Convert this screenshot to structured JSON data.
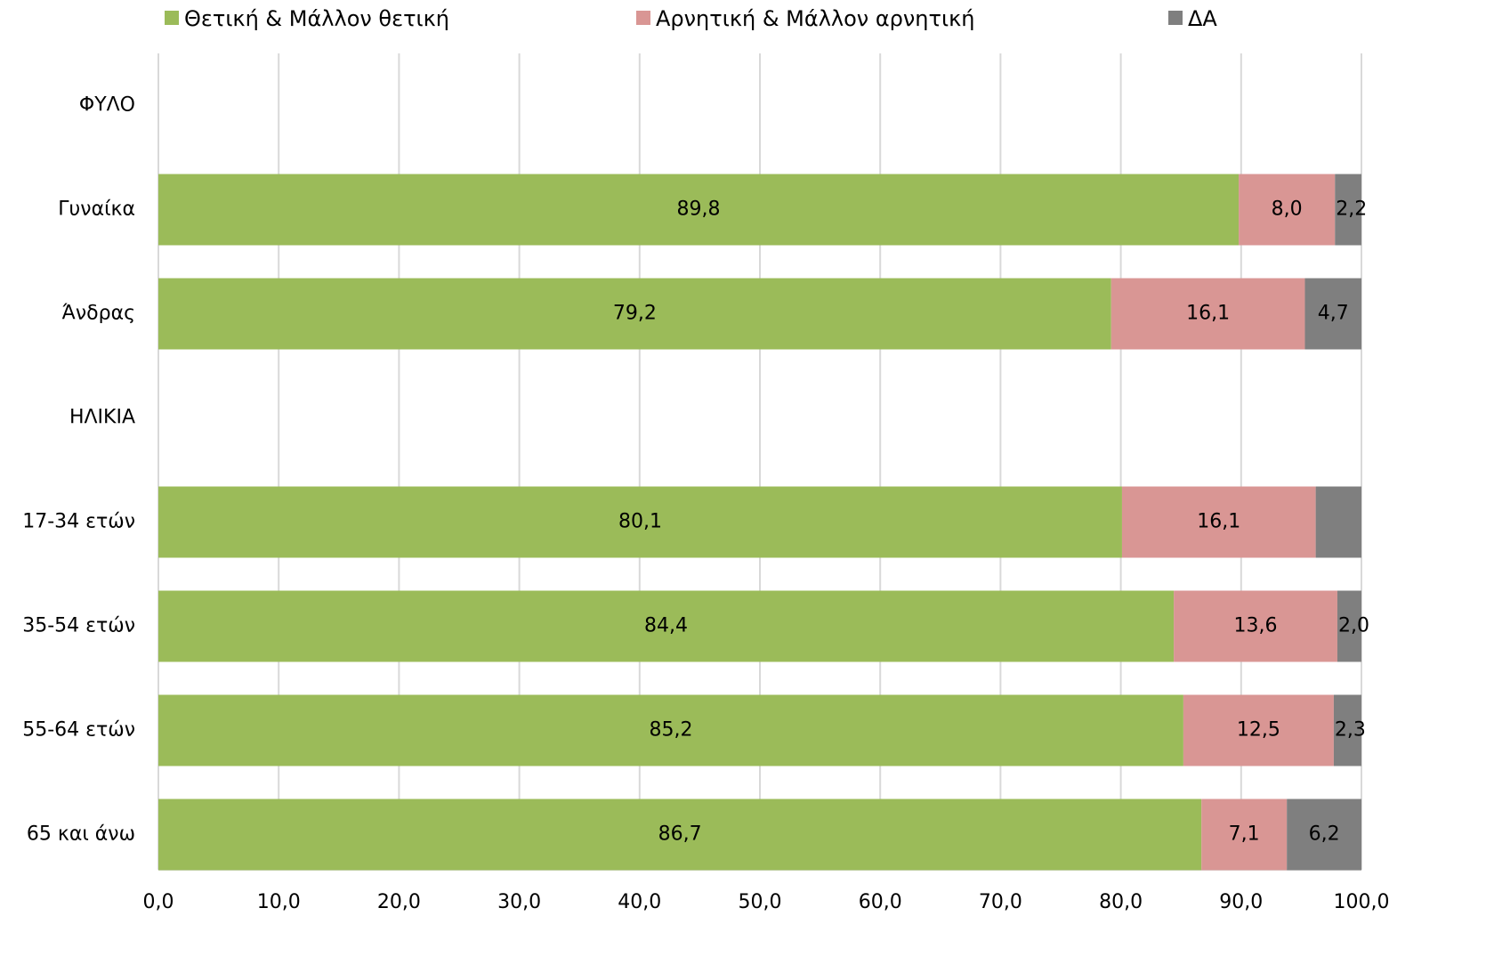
{
  "chart_data": {
    "type": "stacked-barh",
    "categories": [
      "ΦΥΛΟ",
      "Γυναίκα",
      "Άνδρας",
      "ΗΛΙΚΙΑ",
      "17-34 ετών",
      "35-54 ετών",
      "55-64 ετών",
      "65 και άνω"
    ],
    "series": [
      {
        "name": "Θετική & Μάλλον θετική",
        "color": "#9bbb59",
        "values": [
          null,
          89.8,
          79.2,
          null,
          80.1,
          84.4,
          85.2,
          86.7
        ],
        "value_labels": [
          null,
          "89,8",
          "79,2",
          null,
          "80,1",
          "84,4",
          "85,2",
          "86,7"
        ]
      },
      {
        "name": "Αρνητική & Μάλλον αρνητική",
        "color": "#d99694",
        "values": [
          null,
          8.0,
          16.1,
          null,
          16.1,
          13.6,
          12.5,
          7.1
        ],
        "value_labels": [
          null,
          "8,0",
          "16,1",
          null,
          "16,1",
          "13,6",
          "12,5",
          "7,1"
        ]
      },
      {
        "name": "ΔΑ",
        "color": "#7f7f7f",
        "values": [
          null,
          2.2,
          4.7,
          null,
          3.8,
          2.0,
          2.3,
          6.2
        ],
        "value_labels": [
          null,
          "2,2",
          "4,7",
          null,
          null,
          "2,0",
          "2,3",
          "6,2"
        ]
      }
    ],
    "xlim": [
      0,
      100
    ],
    "xticks": [
      {
        "value": 0,
        "label": "0,0"
      },
      {
        "value": 10,
        "label": "10,0"
      },
      {
        "value": 20,
        "label": "20,0"
      },
      {
        "value": 30,
        "label": "30,0"
      },
      {
        "value": 40,
        "label": "40,0"
      },
      {
        "value": 50,
        "label": "50,0"
      },
      {
        "value": 60,
        "label": "60,0"
      },
      {
        "value": 70,
        "label": "70,0"
      },
      {
        "value": 80,
        "label": "80,0"
      },
      {
        "value": 90,
        "label": "90,0"
      },
      {
        "value": 100,
        "label": "100,0"
      }
    ],
    "grid": true,
    "legend": "top"
  }
}
